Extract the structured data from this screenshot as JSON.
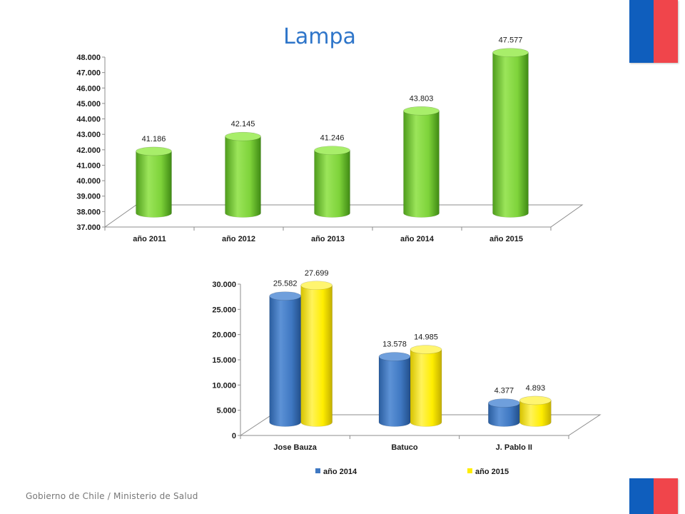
{
  "slide": {
    "title": "Lampa",
    "footer": "Gobierno de Chile / Ministerio de Salud"
  },
  "colors": {
    "flag_blue": "#0f5ebd",
    "flag_red": "#f0454b",
    "green": "#7ed33a",
    "blue": "#3f78c2",
    "yellow": "#ffee00"
  },
  "chart_data": [
    {
      "type": "bar",
      "title": "",
      "categories": [
        "año 2011",
        "año 2012",
        "año 2013",
        "año 2014",
        "año 2015"
      ],
      "series": [
        {
          "values": [
            41186,
            42145,
            41246,
            43803,
            47577
          ],
          "labels": [
            "41.186",
            "42.145",
            "41.246",
            "43.803",
            "47.577"
          ],
          "color": "green"
        }
      ],
      "ylim": [
        37000,
        48000
      ],
      "yticks": [
        "37.000",
        "38.000",
        "39.000",
        "40.000",
        "41.000",
        "42.000",
        "43.000",
        "44.000",
        "45.000",
        "46.000",
        "47.000",
        "48.000"
      ],
      "legend": "none",
      "grid": false
    },
    {
      "type": "bar",
      "title": "",
      "categories": [
        "Jose Bauza",
        "Batuco",
        "J. Pablo II"
      ],
      "series": [
        {
          "name": "año 2014",
          "values": [
            25582,
            13578,
            4377
          ],
          "labels": [
            "25.582",
            "13.578",
            "4.377"
          ],
          "color": "blue"
        },
        {
          "name": "año 2015",
          "values": [
            27699,
            14985,
            4893
          ],
          "labels": [
            "27.699",
            "14.985",
            "4.893"
          ],
          "color": "yellow"
        }
      ],
      "ylim": [
        0,
        30000
      ],
      "yticks": [
        "0",
        "5.000",
        "10.000",
        "15.000",
        "20.000",
        "25.000",
        "30.000"
      ],
      "legend": "bottom",
      "grid": false
    }
  ]
}
